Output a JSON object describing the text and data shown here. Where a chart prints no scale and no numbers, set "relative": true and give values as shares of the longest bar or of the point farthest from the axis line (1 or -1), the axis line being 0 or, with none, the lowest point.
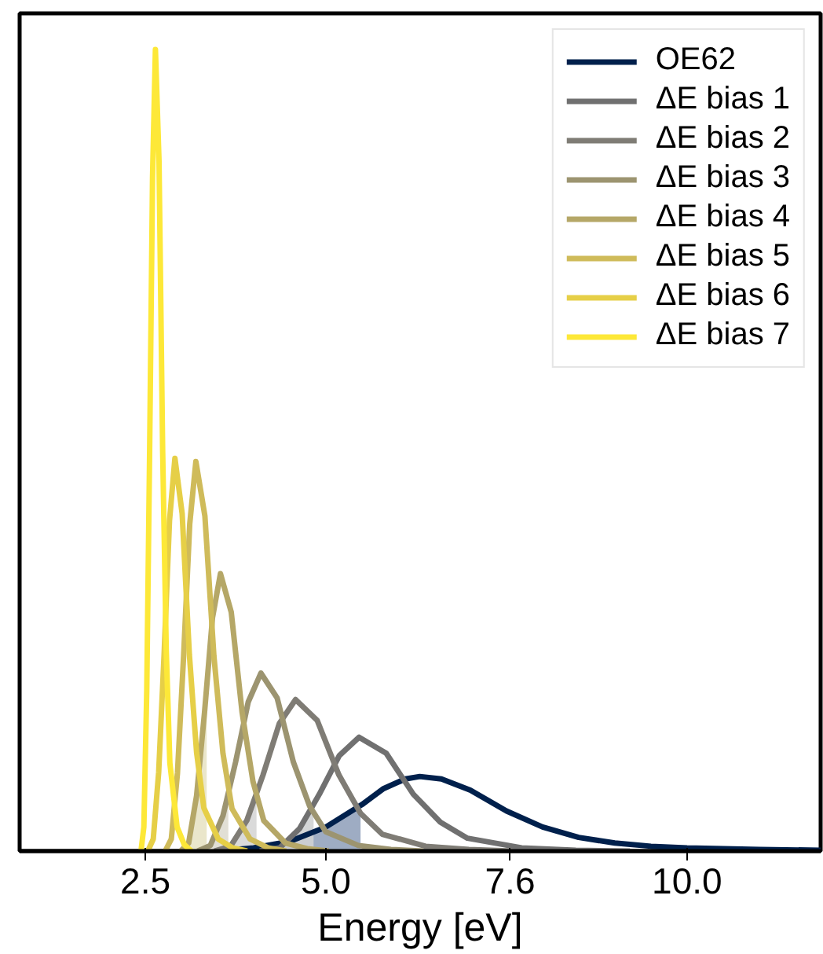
{
  "chart_data": {
    "type": "line",
    "relative": true,
    "xlabel": "Energy [eV]",
    "xlim": [
      0.76,
      11.85
    ],
    "xticks": [
      2.5,
      {
        "value": 5,
        "label": "5.0"
      },
      {
        "value": 7.55,
        "label": "7.6"
      },
      {
        "value": 10,
        "label": "10.0"
      }
    ],
    "grid": false,
    "legend": "top right",
    "marker": "none",
    "line_style": "solid",
    "series": [
      {
        "type": "area",
        "color": "#94a3bd",
        "x": [
          3.5,
          4.0,
          4.5,
          5.0,
          5.48
        ],
        "values": [
          0,
          0.004,
          0.012,
          0.03,
          0.055
        ]
      },
      {
        "type": "area",
        "color": "#cfd1d3",
        "x": [
          4.085,
          4.36,
          4.635,
          4.83
        ],
        "values": [
          0,
          0.004,
          0.028,
          0.06
        ]
      },
      {
        "type": "area",
        "color": "#d6d6d6",
        "x": [
          3.455,
          3.68,
          3.905,
          4.04
        ],
        "values": [
          0,
          0.006,
          0.038,
          0.07
        ]
      },
      {
        "type": "area",
        "color": "#dedbd0",
        "x": [
          3.225,
          3.4,
          3.575,
          3.65
        ],
        "values": [
          0,
          0.007,
          0.044,
          0.07
        ]
      },
      {
        "type": "area",
        "color": "#e8e3c5",
        "x": [
          2.99,
          3.1,
          3.21,
          3.32,
          3.35
        ],
        "values": [
          0,
          0.01,
          0.069,
          0.173,
          0.19
        ]
      },
      {
        "name": "OE62",
        "color": "#00204c",
        "x": [
          3.5,
          4.0,
          4.5,
          5.0,
          5.5,
          5.8,
          6.1,
          6.3,
          6.6,
          7.0,
          7.5,
          8.0,
          8.5,
          9.0,
          9.5,
          10.0,
          10.5,
          11.0,
          11.85
        ],
        "values": [
          0,
          0.004,
          0.012,
          0.03,
          0.058,
          0.078,
          0.09,
          0.093,
          0.09,
          0.076,
          0.05,
          0.03,
          0.017,
          0.01,
          0.006,
          0.004,
          0.003,
          0.002,
          0.001
        ]
      },
      {
        "name": "ΔE bias 1",
        "color": "#707070",
        "x": [
          4.085,
          4.36,
          4.635,
          4.91,
          5.185,
          5.46,
          5.835,
          6.21,
          6.585,
          6.96,
          7.71,
          8.46,
          9.21
        ],
        "values": [
          0,
          0.004,
          0.028,
          0.071,
          0.119,
          0.142,
          0.122,
          0.071,
          0.036,
          0.016,
          0.004,
          0.001,
          0
        ]
      },
      {
        "name": "ΔE bias 2",
        "color": "#7f7c75",
        "x": [
          3.455,
          3.68,
          3.905,
          4.13,
          4.355,
          4.58,
          4.88,
          5.18,
          5.48,
          5.78,
          6.38,
          6.98,
          7.58
        ],
        "values": [
          0,
          0.006,
          0.038,
          0.095,
          0.159,
          0.189,
          0.163,
          0.095,
          0.047,
          0.021,
          0.006,
          0.002,
          0
        ]
      },
      {
        "name": "ΔE bias 3",
        "color": "#9c9470",
        "x": [
          3.225,
          3.4,
          3.575,
          3.75,
          3.925,
          4.1,
          4.325,
          4.55,
          4.775,
          5.0,
          5.45,
          5.9,
          6.35
        ],
        "values": [
          0,
          0.007,
          0.044,
          0.111,
          0.186,
          0.222,
          0.191,
          0.111,
          0.056,
          0.024,
          0.007,
          0.002,
          0
        ]
      },
      {
        "name": "ΔE bias 4",
        "color": "#b5a767",
        "x": [
          2.99,
          3.1,
          3.21,
          3.32,
          3.43,
          3.54,
          3.69,
          3.84,
          3.99,
          4.14,
          4.44,
          4.74,
          5.04
        ],
        "values": [
          0,
          0.01,
          0.069,
          0.173,
          0.291,
          0.346,
          0.298,
          0.173,
          0.087,
          0.038,
          0.01,
          0.003,
          0
        ]
      },
      {
        "name": "ΔE bias 5",
        "color": "#cfbb5a",
        "x": [
          2.775,
          2.86,
          2.945,
          3.03,
          3.115,
          3.2,
          3.325,
          3.45,
          3.575,
          3.7,
          3.95,
          4.2,
          4.45
        ],
        "values": [
          0,
          0.015,
          0.097,
          0.243,
          0.408,
          0.486,
          0.418,
          0.243,
          0.122,
          0.053,
          0.015,
          0.004,
          0
        ]
      },
      {
        "name": "ΔE bias 6",
        "color": "#e6cf47",
        "x": [
          2.535,
          2.61,
          2.685,
          2.76,
          2.835,
          2.91,
          3.01,
          3.11,
          3.21,
          3.31,
          3.51,
          3.71,
          3.91
        ],
        "values": [
          0,
          0.015,
          0.098,
          0.245,
          0.412,
          0.49,
          0.421,
          0.245,
          0.123,
          0.054,
          0.015,
          0.004,
          0
        ]
      },
      {
        "name": "ΔE bias 7",
        "color": "#fde838",
        "x": [
          2.44,
          2.48,
          2.52,
          2.56,
          2.6,
          2.64,
          2.69,
          2.74,
          2.79,
          2.84,
          2.94,
          3.04,
          3.14
        ],
        "values": [
          0,
          0.03,
          0.2,
          0.5,
          0.84,
          1,
          0.86,
          0.5,
          0.25,
          0.11,
          0.03,
          0.008,
          0
        ]
      }
    ]
  }
}
